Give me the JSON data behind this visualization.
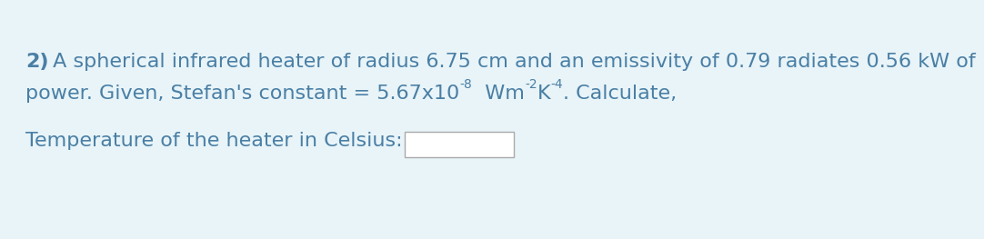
{
  "background_color": "#e8f4f8",
  "text_color": "#4a7fa5",
  "bold_prefix": "2)",
  "line1_rest": " A spherical infrared heater of radius 6.75 cm and an emissivity of 0.79 radiates 0.56 kW of",
  "line2_base": "power. Given, Stefan's constant = 5.67x10",
  "line2_sup1": "-8",
  "line2_mid1": "  Wm",
  "line2_sup2": "-2",
  "line2_mid2": "K",
  "line2_sup3": "-4",
  "line2_end": ". Calculate,",
  "line3_label": "Temperature of the heater in Celsius:",
  "font_size": 16,
  "sup_font_size": 10,
  "font_family": "DejaVu Sans"
}
